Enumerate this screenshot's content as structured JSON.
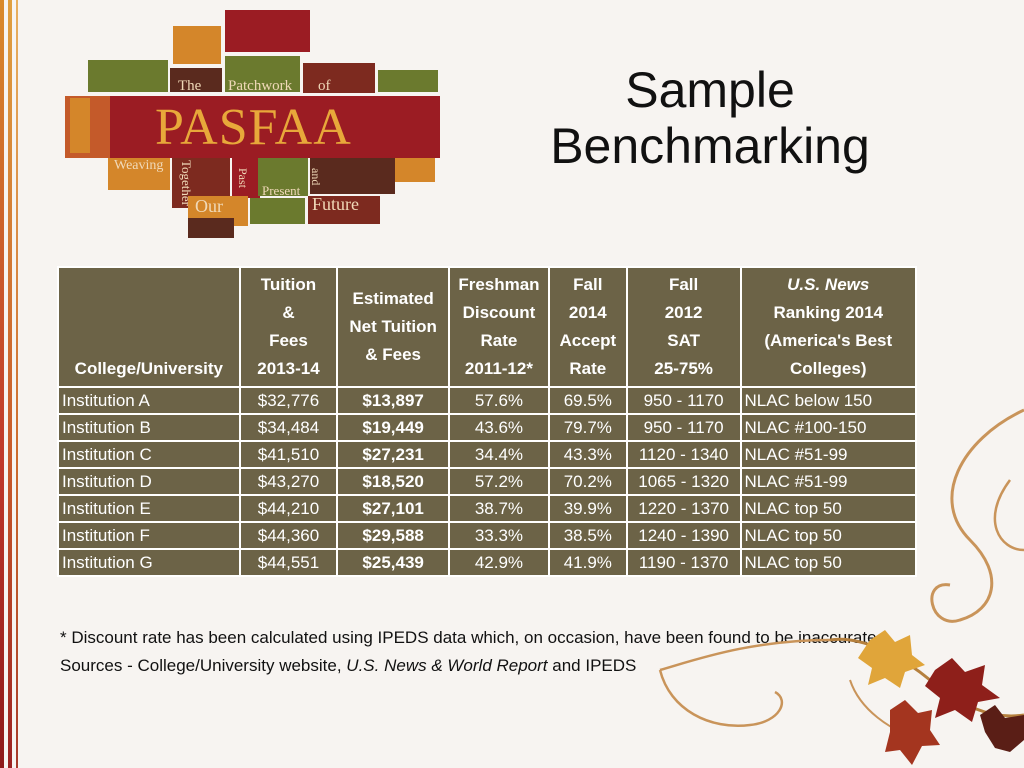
{
  "slide": {
    "title_line1": "Sample",
    "title_line2": "Benchmarking"
  },
  "logo": {
    "name": "PASFAA",
    "words": [
      "The",
      "Patchwork",
      "of",
      "Weaving",
      "Together",
      "Past",
      "Present",
      "and",
      "Our",
      "Future"
    ],
    "colors": {
      "red": "#9b1c23",
      "orange": "#d4862a",
      "olive": "#6b7a2e",
      "brown": "#5a2a1e"
    }
  },
  "table": {
    "headers": {
      "college": "College/University",
      "tuition": [
        "Tuition",
        "&",
        "Fees",
        "2013-14"
      ],
      "net": [
        "Estimated",
        "Net Tuition",
        "& Fees"
      ],
      "discount": [
        "Freshman",
        "Discount",
        "Rate",
        "2011-12*"
      ],
      "accept": [
        "Fall",
        "2014",
        "Accept",
        "Rate"
      ],
      "sat": [
        "Fall",
        "2012",
        "SAT",
        "25-75%"
      ],
      "usnews": [
        "U.S. News",
        "Ranking 2014",
        "(America's Best",
        "Colleges)"
      ]
    },
    "rows": [
      {
        "name": "Institution A",
        "tuition": "$32,776",
        "net": "$13,897",
        "discount": "57.6%",
        "accept": "69.5%",
        "sat": "950 - 1170",
        "rank": "NLAC below 150"
      },
      {
        "name": "Institution B",
        "tuition": "$34,484",
        "net": "$19,449",
        "discount": "43.6%",
        "accept": "79.7%",
        "sat": "950 - 1170",
        "rank": "NLAC #100-150"
      },
      {
        "name": "Institution C",
        "tuition": "$41,510",
        "net": "$27,231",
        "discount": "34.4%",
        "accept": "43.3%",
        "sat": "1120 - 1340",
        "rank": "NLAC #51-99"
      },
      {
        "name": "Institution D",
        "tuition": "$43,270",
        "net": "$18,520",
        "discount": "57.2%",
        "accept": "70.2%",
        "sat": "1065 - 1320",
        "rank": "NLAC #51-99"
      },
      {
        "name": "Institution E",
        "tuition": "$44,210",
        "net": "$27,101",
        "discount": "38.7%",
        "accept": "39.9%",
        "sat": "1220 - 1370",
        "rank": "NLAC top 50"
      },
      {
        "name": "Institution F",
        "tuition": "$44,360",
        "net": "$29,588",
        "discount": "33.3%",
        "accept": "38.5%",
        "sat": "1240 - 1390",
        "rank": "NLAC top 50"
      },
      {
        "name": "Institution G",
        "tuition": "$44,551",
        "net": "$25,439",
        "discount": "42.9%",
        "accept": "41.9%",
        "sat": "1190 - 1370",
        "rank": "NLAC top 50"
      }
    ],
    "header_bg": "#6c6347"
  },
  "notes": {
    "footnote": "* Discount rate has been calculated using IPEDS data which, on occasion, have been found to be inaccurate.",
    "sources_prefix": "Sources - College/University website,",
    "sources_italic": "U.S. News & World Report",
    "sources_suffix": "and IPEDS"
  }
}
